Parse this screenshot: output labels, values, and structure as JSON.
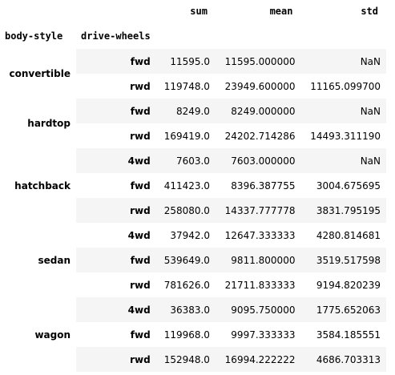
{
  "header": {
    "columns": [
      "sum",
      "mean",
      "std"
    ],
    "index_names": [
      "body-style",
      "drive-wheels"
    ]
  },
  "groups": [
    {
      "body_style": "convertible",
      "rows": [
        {
          "drive": "fwd",
          "sum": "11595.0",
          "mean": "11595.000000",
          "std": "NaN"
        },
        {
          "drive": "rwd",
          "sum": "119748.0",
          "mean": "23949.600000",
          "std": "11165.099700"
        }
      ]
    },
    {
      "body_style": "hardtop",
      "rows": [
        {
          "drive": "fwd",
          "sum": "8249.0",
          "mean": "8249.000000",
          "std": "NaN"
        },
        {
          "drive": "rwd",
          "sum": "169419.0",
          "mean": "24202.714286",
          "std": "14493.311190"
        }
      ]
    },
    {
      "body_style": "hatchback",
      "rows": [
        {
          "drive": "4wd",
          "sum": "7603.0",
          "mean": "7603.000000",
          "std": "NaN"
        },
        {
          "drive": "fwd",
          "sum": "411423.0",
          "mean": "8396.387755",
          "std": "3004.675695"
        },
        {
          "drive": "rwd",
          "sum": "258080.0",
          "mean": "14337.777778",
          "std": "3831.795195"
        }
      ]
    },
    {
      "body_style": "sedan",
      "rows": [
        {
          "drive": "4wd",
          "sum": "37942.0",
          "mean": "12647.333333",
          "std": "4280.814681"
        },
        {
          "drive": "fwd",
          "sum": "539649.0",
          "mean": "9811.800000",
          "std": "3519.517598"
        },
        {
          "drive": "rwd",
          "sum": "781626.0",
          "mean": "21711.833333",
          "std": "9194.820239"
        }
      ]
    },
    {
      "body_style": "wagon",
      "rows": [
        {
          "drive": "4wd",
          "sum": "36383.0",
          "mean": "9095.750000",
          "std": "1775.652063"
        },
        {
          "drive": "fwd",
          "sum": "119968.0",
          "mean": "9997.333333",
          "std": "3584.185551"
        },
        {
          "drive": "rwd",
          "sum": "152948.0",
          "mean": "16994.222222",
          "std": "4686.703313"
        }
      ]
    }
  ]
}
